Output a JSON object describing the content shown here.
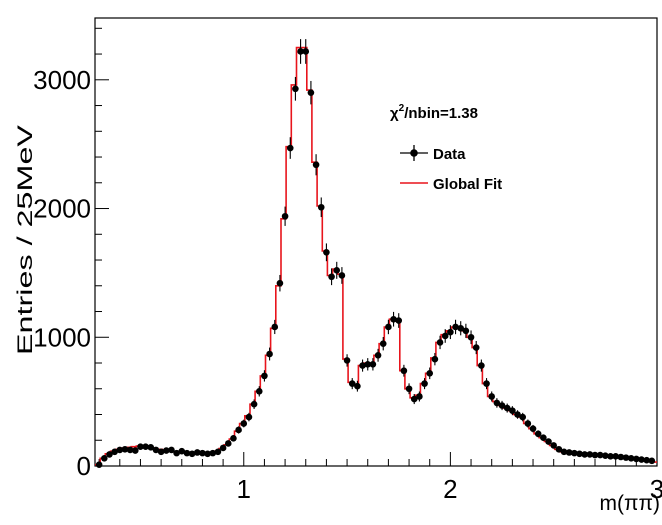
{
  "chart_data": {
    "type": "histogram",
    "xlabel": "m(ππ)",
    "ylabel": "Entries / 25MeV",
    "xlim": [
      0.28,
      3.0
    ],
    "ylim": [
      0,
      3480
    ],
    "xticks": [
      1,
      2,
      3
    ],
    "xtick_labels": [
      "1",
      "2",
      "3"
    ],
    "yticks": [
      0,
      1000,
      2000,
      3000
    ],
    "ytick_labels": [
      "0",
      "1000",
      "2000",
      "3000"
    ],
    "grid": false,
    "legend_position": "top-right",
    "annotation": {
      "base": "χ",
      "sup": "2",
      "rest": "/nbin=1.38"
    },
    "series": [
      {
        "name": "Data",
        "kind": "points-with-errors",
        "color": "#000000",
        "x": [
          0.3,
          0.325,
          0.35,
          0.375,
          0.4,
          0.425,
          0.45,
          0.475,
          0.5,
          0.525,
          0.55,
          0.575,
          0.6,
          0.625,
          0.65,
          0.675,
          0.7,
          0.725,
          0.75,
          0.775,
          0.8,
          0.825,
          0.85,
          0.875,
          0.9,
          0.925,
          0.95,
          0.975,
          1.0,
          1.025,
          1.05,
          1.075,
          1.1,
          1.125,
          1.15,
          1.175,
          1.2,
          1.225,
          1.25,
          1.275,
          1.3,
          1.325,
          1.35,
          1.375,
          1.4,
          1.425,
          1.45,
          1.475,
          1.5,
          1.525,
          1.55,
          1.575,
          1.6,
          1.625,
          1.65,
          1.675,
          1.7,
          1.725,
          1.75,
          1.775,
          1.8,
          1.825,
          1.85,
          1.875,
          1.9,
          1.925,
          1.95,
          1.975,
          2.0,
          2.025,
          2.05,
          2.075,
          2.1,
          2.125,
          2.15,
          2.175,
          2.2,
          2.225,
          2.25,
          2.275,
          2.3,
          2.325,
          2.35,
          2.375,
          2.4,
          2.425,
          2.45,
          2.475,
          2.5,
          2.525,
          2.55,
          2.575,
          2.6,
          2.625,
          2.65,
          2.675,
          2.7,
          2.725,
          2.75,
          2.775,
          2.8,
          2.825,
          2.85,
          2.875,
          2.9,
          2.925,
          2.95,
          2.975
        ],
        "y": [
          10,
          60,
          90,
          110,
          125,
          130,
          125,
          120,
          150,
          150,
          145,
          125,
          110,
          120,
          125,
          100,
          115,
          100,
          95,
          105,
          100,
          95,
          100,
          110,
          140,
          175,
          215,
          280,
          330,
          380,
          480,
          580,
          700,
          870,
          1080,
          1420,
          1940,
          2470,
          2930,
          3220,
          3220,
          2900,
          2340,
          2010,
          1660,
          1470,
          1520,
          1480,
          820,
          640,
          620,
          780,
          790,
          790,
          860,
          950,
          1080,
          1140,
          1130,
          740,
          600,
          520,
          540,
          640,
          720,
          830,
          960,
          1010,
          1040,
          1080,
          1070,
          1050,
          1000,
          920,
          780,
          640,
          540,
          490,
          470,
          450,
          430,
          400,
          380,
          330,
          290,
          250,
          220,
          190,
          160,
          130,
          110,
          105,
          100,
          95,
          90,
          90,
          85,
          85,
          80,
          75,
          75,
          70,
          65,
          60,
          55,
          50,
          45,
          40
        ],
        "yerr": [
          8,
          14,
          16,
          18,
          19,
          19,
          19,
          18,
          20,
          20,
          20,
          19,
          18,
          18,
          19,
          17,
          18,
          17,
          17,
          17,
          17,
          17,
          17,
          18,
          20,
          22,
          24,
          28,
          30,
          33,
          37,
          40,
          44,
          50,
          55,
          64,
          75,
          84,
          92,
          96,
          96,
          91,
          82,
          76,
          69,
          65,
          66,
          65,
          48,
          43,
          42,
          47,
          48,
          48,
          50,
          52,
          56,
          57,
          57,
          46,
          42,
          39,
          39,
          43,
          45,
          48,
          52,
          53,
          54,
          56,
          55,
          55,
          53,
          51,
          47,
          43,
          39,
          37,
          36,
          35,
          35,
          33,
          33,
          31,
          29,
          27,
          25,
          24,
          22,
          20,
          18,
          18,
          17,
          17,
          16,
          16,
          16,
          16,
          15,
          15,
          15,
          14,
          14,
          13,
          13,
          12,
          11,
          11
        ]
      },
      {
        "name": "Global Fit",
        "kind": "step",
        "color": "#e8141c",
        "x_edges_start": 0.28,
        "bin_width": 0.025,
        "values": [
          10,
          60,
          95,
          115,
          130,
          140,
          145,
          150,
          155,
          155,
          150,
          140,
          130,
          125,
          120,
          110,
          110,
          105,
          100,
          100,
          100,
          100,
          105,
          115,
          135,
          165,
          210,
          270,
          330,
          390,
          480,
          580,
          700,
          860,
          1070,
          1400,
          1920,
          2480,
          2960,
          3250,
          3250,
          2920,
          2360,
          2020,
          1670,
          1480,
          1530,
          1490,
          830,
          650,
          630,
          780,
          800,
          800,
          860,
          950,
          1080,
          1140,
          1140,
          740,
          600,
          530,
          550,
          640,
          720,
          840,
          960,
          1020,
          1050,
          1080,
          1070,
          1050,
          1000,
          920,
          780,
          640,
          540,
          500,
          470,
          450,
          430,
          400,
          380,
          330,
          290,
          250,
          220,
          190,
          160,
          130,
          110,
          105,
          100,
          95,
          90,
          90,
          85,
          85,
          80,
          75,
          75,
          70,
          65,
          60,
          55,
          50,
          45,
          40,
          30
        ]
      }
    ]
  }
}
